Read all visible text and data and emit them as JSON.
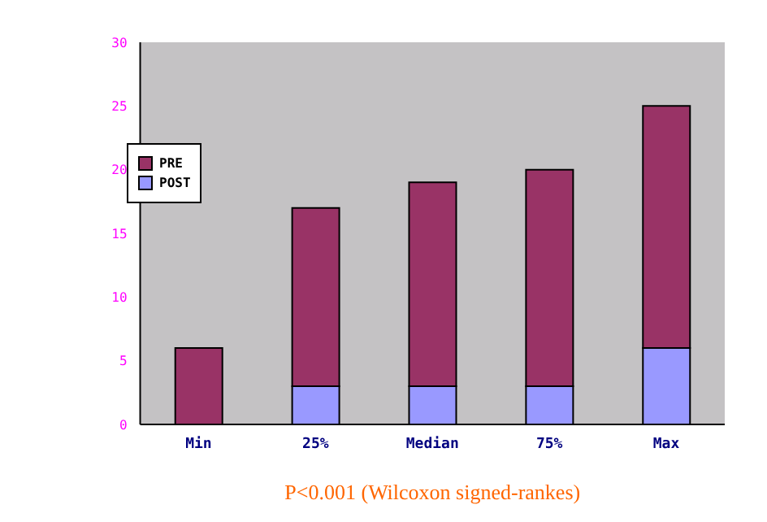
{
  "chart_data": {
    "type": "bar",
    "stacked": true,
    "xlabel": "P<0.001 (Wilcoxon signed-rankes)",
    "categories": [
      "Min",
      "25%",
      "Median",
      "75%",
      "Max"
    ],
    "series": [
      {
        "name": "POST",
        "color": "#9999ff",
        "values": [
          0,
          3,
          3,
          3,
          6
        ]
      },
      {
        "name": "PRE",
        "color": "#993366",
        "values": [
          6,
          14,
          16,
          17,
          19
        ]
      }
    ],
    "ylim": [
      0,
      30
    ],
    "yticks": [
      0,
      5,
      10,
      15,
      20,
      25,
      30
    ],
    "grid": false,
    "legend": "top left"
  }
}
